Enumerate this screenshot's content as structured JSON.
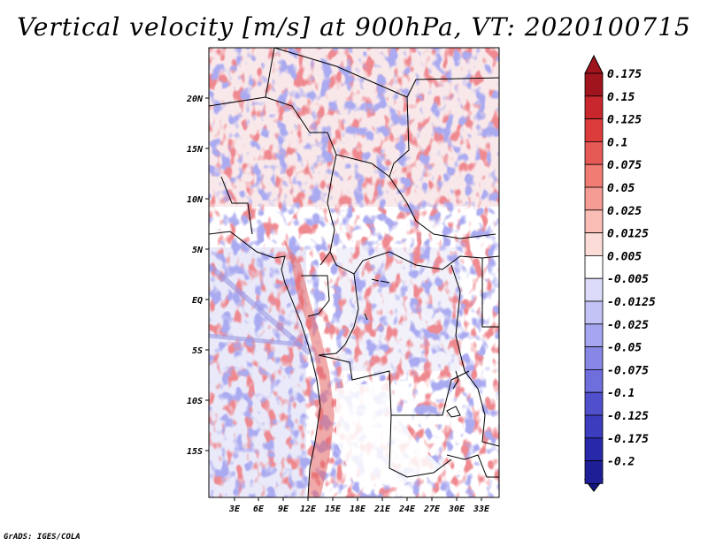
{
  "title": "Vertical velocity [m/s] at 900hPa, VT: 2020100715",
  "credit": "GrADS: IGES/COLA",
  "map": {
    "lat_labels": [
      "20N",
      "15N",
      "10N",
      "5N",
      "EQ",
      "5S",
      "10S",
      "15S"
    ],
    "lon_labels": [
      "3E",
      "6E",
      "9E",
      "12E",
      "15E",
      "18E",
      "21E",
      "24E",
      "27E",
      "30E",
      "33E"
    ]
  },
  "colorbar": {
    "labels": [
      "0.175",
      "0.15",
      "0.125",
      "0.1",
      "0.075",
      "0.05",
      "0.025",
      "0.0125",
      "0.005",
      "-0.005",
      "-0.0125",
      "-0.025",
      "-0.05",
      "-0.075",
      "-0.1",
      "-0.125",
      "-0.175",
      "-0.2"
    ],
    "colors": [
      "#a0141e",
      "#c8282d",
      "#dc3c3c",
      "#e65a55",
      "#f07c73",
      "#f59c94",
      "#fabeb6",
      "#fcdcd6",
      "#ffffff",
      "#dcdcfa",
      "#c3c3f5",
      "#a5a5f0",
      "#8787e6",
      "#6e6edc",
      "#5050cd",
      "#3c3cbe",
      "#2828aa",
      "#1e1e96"
    ],
    "top_color": "#a0141e",
    "bottom_color": "#141482"
  }
}
